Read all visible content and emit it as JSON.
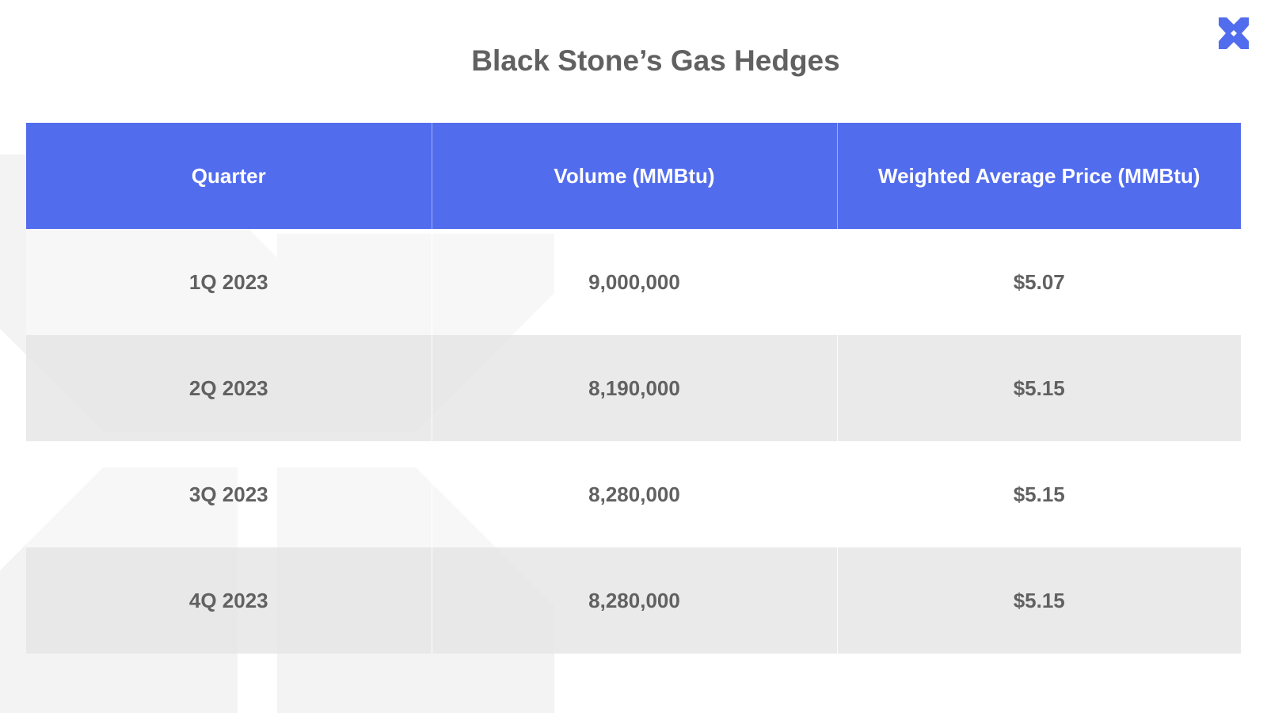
{
  "title": "Black Stone’s Gas Hedges",
  "table": {
    "headers": [
      "Quarter",
      "Volume (MMBtu)",
      "Weighted Average Price (MMBtu)"
    ],
    "rows": [
      [
        "1Q 2023",
        "9,000,000",
        "$5.07"
      ],
      [
        "2Q 2023",
        "8,190,000",
        "$5.15"
      ],
      [
        "3Q 2023",
        "8,280,000",
        "$5.15"
      ],
      [
        "4Q 2023",
        "8,280,000",
        "$5.15"
      ]
    ]
  },
  "colors": {
    "header_background": "#526cee",
    "header_text": "#ffffff",
    "body_text": "#616161",
    "alternate_row": "#e9e9e9",
    "logo": "#526cee"
  },
  "icons": {
    "logo": "x-brand-logo-icon",
    "background": "x-watermark-icon"
  }
}
